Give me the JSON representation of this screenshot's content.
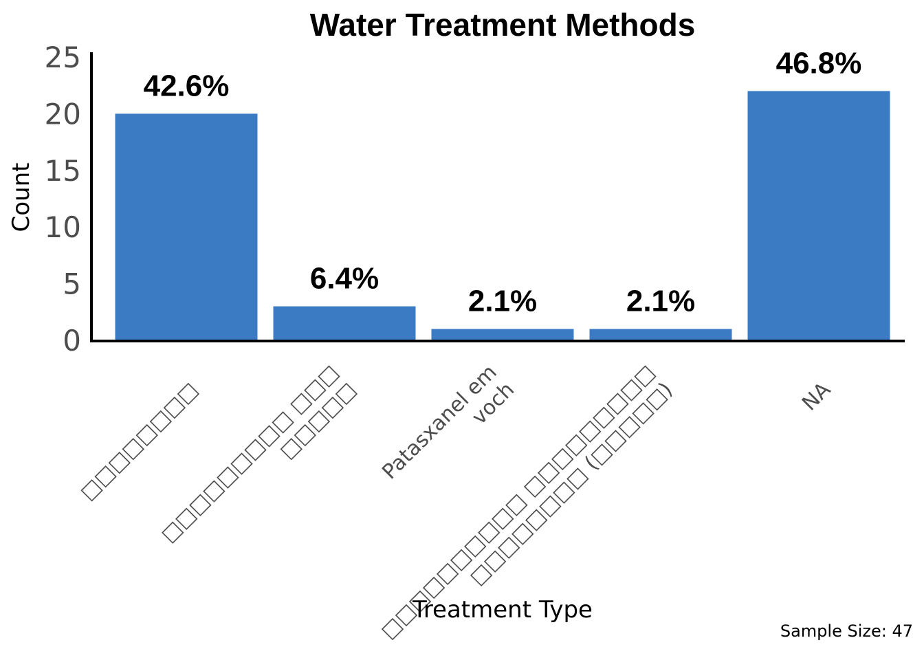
{
  "chart_data": {
    "type": "bar",
    "title": "Water Treatment Methods",
    "xlabel": "Treatment Type",
    "ylabel": "Count",
    "categories": [
      "□□□□□□□□",
      "□□□□□□□□□ □□□ □□□□□",
      "Patasxanel em voch",
      "□□□□□□□□□□ □□□□□□□□□ □□□□□□□□ (□□□□□)",
      "NA"
    ],
    "category_lines": [
      [
        "□□□□□□□□"
      ],
      [
        "□□□□□□□□□ □□□",
        "□□□□□"
      ],
      [
        "Patasxanel em",
        "voch"
      ],
      [
        "□□□□□□□□□□ □□□□□□□□□",
        "□□□□□□□□ (□□□□□)"
      ],
      [
        "NA"
      ]
    ],
    "values": [
      20,
      3,
      1,
      1,
      22
    ],
    "labels": [
      "42.6%",
      "6.4%",
      "2.1%",
      "2.1%",
      "46.8%"
    ],
    "ylim": [
      0,
      25
    ],
    "yticks": [
      "0",
      "5",
      "10",
      "15",
      "20",
      "25"
    ],
    "grid": false,
    "bar_color": "#3b7bc4",
    "caption": "Sample Size: 47"
  }
}
